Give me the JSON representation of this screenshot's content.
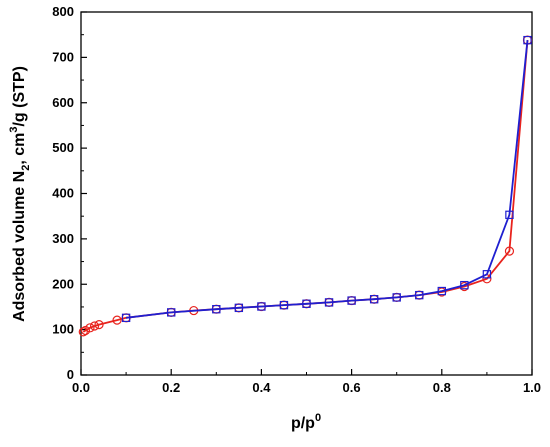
{
  "chart_data": {
    "type": "line",
    "xlim": [
      0.0,
      1.0
    ],
    "ylim": [
      0,
      800
    ],
    "x_ticks": [
      "0.0",
      "0.2",
      "0.4",
      "0.6",
      "0.8",
      "1.0"
    ],
    "y_ticks": [
      "0",
      "100",
      "200",
      "300",
      "400",
      "500",
      "600",
      "700",
      "800"
    ],
    "xlabel": {
      "main": "p/p",
      "sup": "0"
    },
    "ylabel": {
      "part1": "Adsorbed volume N",
      "sub": "2",
      "part2": ", cm",
      "sup": "3",
      "part3": "/g (STP)"
    },
    "grid": false,
    "series": [
      {
        "marker": "circle",
        "color": "#e8231d",
        "x": [
          0.005,
          0.01,
          0.02,
          0.03,
          0.04,
          0.08,
          0.1,
          0.2,
          0.25,
          0.3,
          0.35,
          0.4,
          0.45,
          0.5,
          0.55,
          0.6,
          0.65,
          0.7,
          0.75,
          0.8,
          0.85,
          0.9,
          0.95,
          0.99
        ],
        "y": [
          95,
          98,
          104,
          108,
          111,
          121,
          126,
          138,
          142,
          145,
          148,
          151,
          154,
          157,
          160,
          164,
          167,
          171,
          176,
          183,
          195,
          212,
          273,
          738
        ]
      },
      {
        "marker": "square",
        "color": "#1f1fd0",
        "x": [
          0.1,
          0.2,
          0.3,
          0.35,
          0.4,
          0.45,
          0.5,
          0.55,
          0.6,
          0.65,
          0.7,
          0.75,
          0.8,
          0.85,
          0.9,
          0.95,
          0.99
        ],
        "y": [
          126,
          138,
          145,
          148,
          151,
          154,
          157,
          160,
          164,
          167,
          171,
          176,
          185,
          198,
          222,
          353,
          738
        ]
      }
    ]
  }
}
